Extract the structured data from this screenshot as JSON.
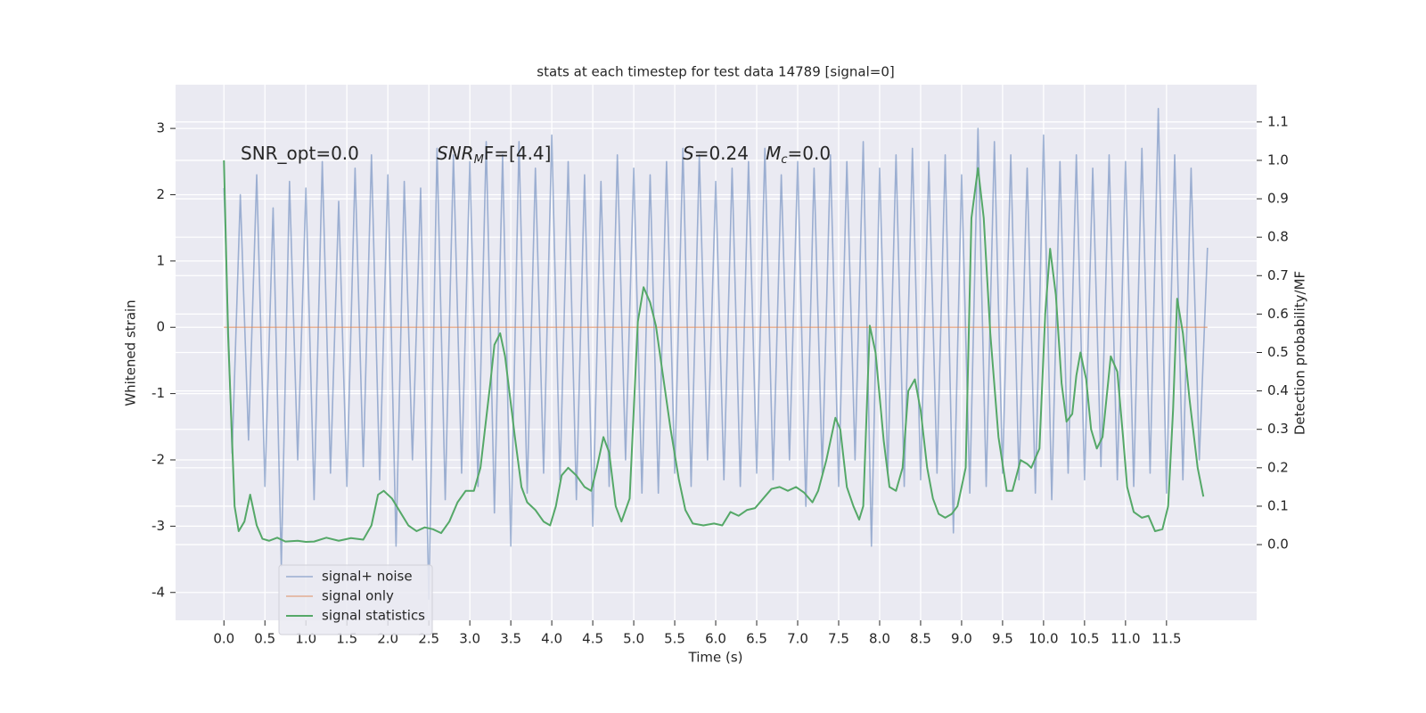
{
  "chart_data": {
    "type": "line",
    "title": "stats at each timestep for test data 14789 [signal=0]",
    "xlabel": "Time (s)",
    "ylabel": "Whitened strain",
    "y2label": "Detection probability/MF",
    "xlim": [
      -0.59,
      12.6
    ],
    "ylim": [
      -4.42,
      3.66
    ],
    "y2lim": [
      -0.197,
      1.197
    ],
    "xticks": [
      {
        "value": 0,
        "label": "0.0"
      },
      0.5,
      {
        "value": 1,
        "label": "1.0"
      },
      1.5,
      {
        "value": 2,
        "label": "2.0"
      },
      2.5,
      {
        "value": 3,
        "label": "3.0"
      },
      3.5,
      {
        "value": 4,
        "label": "4.0"
      },
      4.5,
      {
        "value": 5,
        "label": "5.0"
      },
      5.5,
      {
        "value": 6,
        "label": "6.0"
      },
      6.5,
      {
        "value": 7,
        "label": "7.0"
      },
      7.5,
      {
        "value": 8,
        "label": "8.0"
      },
      8.5,
      {
        "value": 9,
        "label": "9.0"
      },
      9.5,
      {
        "value": 10,
        "label": "10.0"
      },
      10.5,
      {
        "value": 11,
        "label": "11.0"
      },
      11.5
    ],
    "yticks": [
      -4,
      -3,
      -2,
      -1,
      0,
      1,
      2,
      3
    ],
    "y2ticks": [
      {
        "value": 0,
        "label": "0.0"
      },
      0.1,
      0.2,
      0.3,
      0.4,
      0.5,
      0.6,
      0.7,
      0.8,
      0.9,
      {
        "value": 1,
        "label": "1.0"
      },
      1.1
    ],
    "grid": true,
    "legend": "lower left",
    "series": [
      {
        "name": "signal+ noise",
        "color": "#4c72b0",
        "x": [
          0,
          0.1,
          0.2,
          0.3,
          0.4,
          0.5,
          0.6,
          0.7,
          0.8,
          0.9,
          1.0,
          1.1,
          1.2,
          1.3,
          1.4,
          1.5,
          1.6,
          1.7,
          1.8,
          1.9,
          2.0,
          2.1,
          2.2,
          2.3,
          2.4,
          2.5,
          2.6,
          2.7,
          2.8,
          2.9,
          3.0,
          3.1,
          3.2,
          3.3,
          3.4,
          3.5,
          3.6,
          3.7,
          3.8,
          3.9,
          4.0,
          4.1,
          4.2,
          4.3,
          4.4,
          4.5,
          4.6,
          4.7,
          4.8,
          4.9,
          5.0,
          5.1,
          5.2,
          5.3,
          5.4,
          5.5,
          5.6,
          5.7,
          5.8,
          5.9,
          6.0,
          6.1,
          6.2,
          6.3,
          6.4,
          6.5,
          6.6,
          6.7,
          6.8,
          6.9,
          7.0,
          7.1,
          7.2,
          7.3,
          7.4,
          7.5,
          7.6,
          7.7,
          7.8,
          7.9,
          8.0,
          8.1,
          8.2,
          8.3,
          8.4,
          8.5,
          8.6,
          8.7,
          8.8,
          8.9,
          9.0,
          9.1,
          9.2,
          9.3,
          9.4,
          9.5,
          9.6,
          9.7,
          9.8,
          9.9,
          10.0,
          10.1,
          10.2,
          10.3,
          10.4,
          10.5,
          10.6,
          10.7,
          10.8,
          10.9,
          11.0,
          11.1,
          11.2,
          11.3,
          11.4,
          11.5,
          11.6,
          11.7,
          11.8,
          11.9,
          12.0
        ],
        "values": [
          2.1,
          -1.9,
          2.0,
          -1.7,
          2.3,
          -2.4,
          1.8,
          -3.6,
          2.2,
          -2.0,
          2.1,
          -2.6,
          2.5,
          -2.2,
          1.9,
          -2.4,
          2.4,
          -2.1,
          2.6,
          -2.3,
          2.3,
          -3.3,
          2.2,
          -2.0,
          2.1,
          -4.1,
          2.7,
          -2.6,
          2.6,
          -2.2,
          2.5,
          -2.4,
          2.8,
          -2.8,
          2.6,
          -3.3,
          2.8,
          -2.5,
          2.4,
          -2.2,
          2.9,
          -2.3,
          2.5,
          -2.6,
          2.3,
          -3.0,
          2.2,
          -2.4,
          2.6,
          -2.0,
          2.4,
          -2.5,
          2.3,
          -2.5,
          2.5,
          -2.2,
          2.7,
          -2.4,
          2.6,
          -2.0,
          2.2,
          -2.3,
          2.4,
          -2.4,
          2.5,
          -2.2,
          2.7,
          -2.3,
          2.3,
          -2.0,
          2.5,
          -2.7,
          2.4,
          -2.2,
          2.6,
          -2.4,
          2.5,
          -2.0,
          2.8,
          -3.3,
          2.4,
          -2.2,
          2.6,
          -2.4,
          2.7,
          -2.3,
          2.5,
          -2.2,
          2.6,
          -3.1,
          2.3,
          -2.5,
          3.0,
          -2.4,
          2.8,
          -2.2,
          2.6,
          -2.3,
          2.4,
          -2.5,
          2.9,
          -2.6,
          2.5,
          -2.2,
          2.6,
          -2.3,
          2.4,
          -2.1,
          2.6,
          -2.3,
          2.5,
          -2.4,
          2.7,
          -2.2,
          3.3,
          -2.5,
          2.6,
          -2.3,
          2.4,
          -2.0,
          1.2
        ]
      },
      {
        "name": "signal only",
        "color": "#dd8452",
        "x": [
          0,
          12.0
        ],
        "values": [
          0,
          0
        ]
      },
      {
        "name": "signal statistics",
        "color": "#55a868",
        "axis": "y2",
        "x": [
          0,
          0.05,
          0.13,
          0.18,
          0.25,
          0.32,
          0.4,
          0.47,
          0.55,
          0.65,
          0.75,
          0.9,
          1.0,
          1.1,
          1.25,
          1.4,
          1.55,
          1.7,
          1.8,
          1.88,
          1.95,
          2.05,
          2.15,
          2.25,
          2.35,
          2.45,
          2.55,
          2.65,
          2.75,
          2.85,
          2.95,
          3.05,
          3.13,
          3.25,
          3.3,
          3.37,
          3.43,
          3.55,
          3.63,
          3.7,
          3.8,
          3.9,
          3.98,
          4.05,
          4.12,
          4.2,
          4.3,
          4.4,
          4.48,
          4.55,
          4.63,
          4.7,
          4.78,
          4.85,
          4.95,
          5.05,
          5.12,
          5.2,
          5.27,
          5.35,
          5.45,
          5.55,
          5.63,
          5.72,
          5.85,
          5.98,
          6.08,
          6.18,
          6.28,
          6.38,
          6.48,
          6.58,
          6.68,
          6.78,
          6.88,
          6.98,
          7.08,
          7.18,
          7.25,
          7.35,
          7.46,
          7.52,
          7.6,
          7.68,
          7.75,
          7.8,
          7.88,
          7.95,
          8.05,
          8.12,
          8.2,
          8.28,
          8.35,
          8.43,
          8.5,
          8.58,
          8.65,
          8.72,
          8.8,
          8.88,
          8.95,
          9.05,
          9.12,
          9.2,
          9.27,
          9.35,
          9.45,
          9.55,
          9.62,
          9.72,
          9.8,
          9.85,
          9.95,
          10.02,
          10.08,
          10.15,
          10.22,
          10.28,
          10.35,
          10.4,
          10.45,
          10.52,
          10.58,
          10.65,
          10.72,
          10.82,
          10.9,
          10.97,
          11.02,
          11.1,
          11.2,
          11.28,
          11.36,
          11.45,
          11.52,
          11.58,
          11.63,
          11.7,
          11.78,
          11.88,
          11.95
        ],
        "values": [
          1.0,
          0.55,
          0.1,
          0.035,
          0.06,
          0.13,
          0.05,
          0.015,
          0.01,
          0.018,
          0.008,
          0.01,
          0.007,
          0.008,
          0.018,
          0.01,
          0.017,
          0.013,
          0.05,
          0.13,
          0.14,
          0.12,
          0.085,
          0.05,
          0.035,
          0.045,
          0.04,
          0.03,
          0.06,
          0.11,
          0.14,
          0.14,
          0.2,
          0.42,
          0.52,
          0.55,
          0.49,
          0.28,
          0.15,
          0.11,
          0.09,
          0.06,
          0.05,
          0.1,
          0.18,
          0.2,
          0.18,
          0.15,
          0.14,
          0.2,
          0.28,
          0.24,
          0.1,
          0.06,
          0.12,
          0.58,
          0.67,
          0.63,
          0.57,
          0.45,
          0.3,
          0.17,
          0.09,
          0.055,
          0.05,
          0.055,
          0.05,
          0.085,
          0.075,
          0.09,
          0.095,
          0.12,
          0.145,
          0.15,
          0.14,
          0.15,
          0.135,
          0.11,
          0.14,
          0.22,
          0.33,
          0.3,
          0.15,
          0.1,
          0.065,
          0.1,
          0.57,
          0.5,
          0.27,
          0.15,
          0.14,
          0.2,
          0.4,
          0.43,
          0.35,
          0.2,
          0.12,
          0.08,
          0.07,
          0.08,
          0.1,
          0.2,
          0.85,
          0.98,
          0.85,
          0.55,
          0.28,
          0.14,
          0.14,
          0.22,
          0.21,
          0.2,
          0.25,
          0.6,
          0.77,
          0.65,
          0.42,
          0.32,
          0.34,
          0.44,
          0.5,
          0.43,
          0.3,
          0.25,
          0.28,
          0.49,
          0.45,
          0.28,
          0.15,
          0.085,
          0.07,
          0.075,
          0.035,
          0.04,
          0.1,
          0.35,
          0.64,
          0.55,
          0.38,
          0.2,
          0.125
        ]
      }
    ],
    "annotations": [
      {
        "parts": [
          {
            "text": "SNR_opt=0.0"
          }
        ]
      },
      {
        "parts": [
          {
            "text": "SNR",
            "italic": true
          },
          {
            "text": "M",
            "italic": true,
            "sub": true
          },
          {
            "text": "F=[4.4]"
          }
        ]
      },
      {
        "parts": [
          {
            "text": "S",
            "italic": true
          },
          {
            "text": "=0.24   "
          },
          {
            "text": "M",
            "italic": true
          },
          {
            "text": "c",
            "italic": true,
            "sub": true
          },
          {
            "text": "=0.0"
          }
        ]
      }
    ]
  }
}
